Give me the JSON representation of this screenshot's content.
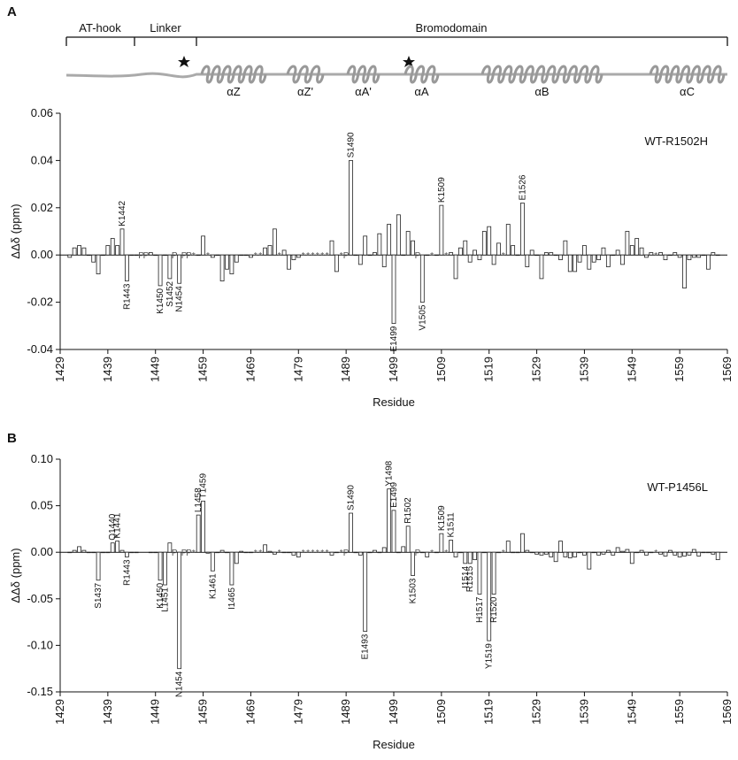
{
  "schematic": {
    "domains": [
      "AT-hook",
      "Linker",
      "Bromodomain"
    ],
    "helices": [
      "αZ",
      "αZ'",
      "αA'",
      "αA",
      "αB",
      "αC"
    ]
  },
  "chart_data": [
    {
      "type": "bar",
      "panel_label": "A",
      "annotation": "WT-R1502H",
      "xlabel": "Residue",
      "ylabel": "ΔΔδ (ppm)",
      "x": [
        1431,
        1432,
        1433,
        1434,
        1435,
        1436,
        1437,
        1438,
        1439,
        1440,
        1441,
        1442,
        1443,
        1444,
        1445,
        1446,
        1447,
        1448,
        1449,
        1450,
        1451,
        1452,
        1453,
        1454,
        1455,
        1456,
        1457,
        1458,
        1459,
        1460,
        1461,
        1462,
        1463,
        1464,
        1465,
        1466,
        1467,
        1468,
        1469,
        1470,
        1471,
        1472,
        1473,
        1474,
        1475,
        1476,
        1477,
        1478,
        1479,
        1480,
        1481,
        1482,
        1483,
        1484,
        1485,
        1486,
        1487,
        1488,
        1489,
        1490,
        1491,
        1492,
        1493,
        1494,
        1495,
        1496,
        1497,
        1498,
        1499,
        1500,
        1501,
        1502,
        1503,
        1504,
        1505,
        1506,
        1507,
        1508,
        1509,
        1510,
        1511,
        1512,
        1513,
        1514,
        1515,
        1516,
        1517,
        1518,
        1519,
        1520,
        1521,
        1522,
        1523,
        1524,
        1525,
        1526,
        1527,
        1528,
        1529,
        1530,
        1531,
        1532,
        1533,
        1534,
        1535,
        1536,
        1537,
        1538,
        1539,
        1540,
        1541,
        1542,
        1543,
        1544,
        1545,
        1546,
        1547,
        1548,
        1549,
        1550,
        1551,
        1552,
        1553,
        1554,
        1555,
        1556,
        1557,
        1558,
        1559,
        1560,
        1561,
        1562,
        1563,
        1564,
        1565,
        1566,
        1567
      ],
      "values": [
        -0.001,
        0.003,
        0.004,
        0.003,
        0,
        -0.003,
        -0.008,
        0,
        0.004,
        0.007,
        0.004,
        0.011,
        -0.011,
        0,
        0,
        null,
        null,
        0.001,
        0,
        -0.013,
        0,
        -0.01,
        null,
        -0.012,
        null,
        null,
        null,
        0,
        0.008,
        null,
        -0.001,
        0,
        -0.011,
        -0.006,
        -0.008,
        -0.003,
        0,
        0,
        -0.001,
        null,
        null,
        0.003,
        0.004,
        0.011,
        null,
        0.002,
        -0.006,
        -0.002,
        -0.001,
        null,
        null,
        null,
        null,
        null,
        null,
        0.006,
        -0.007,
        null,
        null,
        0.04,
        0,
        -0.004,
        0.008,
        0,
        0.001,
        0.009,
        -0.005,
        0.013,
        -0.029,
        0.017,
        0,
        0.01,
        0.006,
        null,
        -0.02,
        0,
        null,
        0,
        0.021,
        null,
        0.001,
        -0.01,
        0.003,
        0.006,
        -0.003,
        0.002,
        -0.002,
        0.01,
        0.012,
        -0.004,
        0.005,
        null,
        0.013,
        0.004,
        0,
        0.022,
        -0.005,
        0.002,
        0,
        -0.01,
        0.001,
        0.001,
        0,
        -0.002,
        0.006,
        -0.007,
        -0.007,
        -0.003,
        0.004,
        -0.006,
        -0.003,
        -0.002,
        0.003,
        -0.005,
        0,
        0.002,
        -0.004,
        0.01,
        0.004,
        0.007,
        0.003,
        -0.001,
        0.001,
        null,
        0.001,
        -0.002,
        0,
        0.001,
        -0.001,
        -0.014,
        -0.002,
        -0.001,
        -0.001,
        0,
        -0.006,
        0.001,
        0
      ],
      "labels": [
        {
          "x": 1442,
          "text": "K1442"
        },
        {
          "x": 1443,
          "text": "R1443"
        },
        {
          "x": 1450,
          "text": "K1450"
        },
        {
          "x": 1452,
          "text": "S1452"
        },
        {
          "x": 1454,
          "text": "N1454"
        },
        {
          "x": 1490,
          "text": "S1490"
        },
        {
          "x": 1499,
          "text": "E1499"
        },
        {
          "x": 1505,
          "text": "V1505"
        },
        {
          "x": 1509,
          "text": "K1509"
        },
        {
          "x": 1526,
          "text": "E1526"
        }
      ],
      "markers": [
        {
          "x": 1446,
          "text": "P"
        },
        {
          "x": 1447,
          "text": "P"
        },
        {
          "x": 1453,
          "text": "P"
        },
        {
          "x": 1455,
          "text": "P"
        },
        {
          "x": 1456,
          "text": "P"
        },
        {
          "x": 1457,
          "text": "*"
        },
        {
          "x": 1460,
          "text": "*"
        },
        {
          "x": 1470,
          "text": "*"
        },
        {
          "x": 1471,
          "text": "*"
        },
        {
          "x": 1475,
          "text": "*"
        },
        {
          "x": 1480,
          "text": "*"
        },
        {
          "x": 1481,
          "text": "*"
        },
        {
          "x": 1482,
          "text": "*"
        },
        {
          "x": 1483,
          "text": "*"
        },
        {
          "x": 1484,
          "text": "*"
        },
        {
          "x": 1485,
          "text": "*"
        },
        {
          "x": 1488,
          "text": "*"
        },
        {
          "x": 1489,
          "text": "P"
        },
        {
          "x": 1504,
          "text": "P"
        },
        {
          "x": 1507,
          "text": "*"
        },
        {
          "x": 1510,
          "text": "*"
        },
        {
          "x": 1522,
          "text": "*"
        },
        {
          "x": 1554,
          "text": "*"
        }
      ],
      "xlim": [
        1429,
        1569
      ],
      "xticks": [
        1429,
        1439,
        1449,
        1459,
        1469,
        1479,
        1489,
        1499,
        1509,
        1519,
        1529,
        1539,
        1549,
        1559,
        1569
      ],
      "ylim": [
        -0.04,
        0.06
      ],
      "yticks": [
        -0.04,
        -0.02,
        {
          "value": 0,
          "label": "0.00"
        },
        0.02,
        0.04,
        0.06
      ]
    },
    {
      "type": "bar",
      "panel_label": "B",
      "annotation": "WT-P1456L",
      "xlabel": "Residue",
      "ylabel": "ΔΔδ (ppm)",
      "x": [
        1431,
        1432,
        1433,
        1434,
        1435,
        1436,
        1437,
        1438,
        1439,
        1440,
        1441,
        1442,
        1443,
        1444,
        1445,
        1446,
        1447,
        1448,
        1449,
        1450,
        1451,
        1452,
        1453,
        1454,
        1455,
        1456,
        1457,
        1458,
        1459,
        1460,
        1461,
        1462,
        1463,
        1464,
        1465,
        1466,
        1467,
        1468,
        1469,
        1470,
        1471,
        1472,
        1473,
        1474,
        1475,
        1476,
        1477,
        1478,
        1479,
        1480,
        1481,
        1482,
        1483,
        1484,
        1485,
        1486,
        1487,
        1488,
        1489,
        1490,
        1491,
        1492,
        1493,
        1494,
        1495,
        1496,
        1497,
        1498,
        1499,
        1500,
        1501,
        1502,
        1503,
        1504,
        1505,
        1506,
        1507,
        1508,
        1509,
        1510,
        1511,
        1512,
        1513,
        1514,
        1515,
        1516,
        1517,
        1518,
        1519,
        1520,
        1521,
        1522,
        1523,
        1524,
        1525,
        1526,
        1527,
        1528,
        1529,
        1530,
        1531,
        1532,
        1533,
        1534,
        1535,
        1536,
        1537,
        1538,
        1539,
        1540,
        1541,
        1542,
        1543,
        1544,
        1545,
        1546,
        1547,
        1548,
        1549,
        1550,
        1551,
        1552,
        1553,
        1554,
        1555,
        1556,
        1557,
        1558,
        1559,
        1560,
        1561,
        1562,
        1563,
        1564,
        1565,
        1566,
        1567
      ],
      "values": [
        0,
        0.002,
        0.006,
        0.002,
        0,
        0,
        -0.03,
        0,
        0,
        0.01,
        0.012,
        0.002,
        -0.005,
        0,
        0,
        null,
        null,
        0,
        0,
        -0.03,
        -0.035,
        0.01,
        null,
        -0.125,
        null,
        null,
        null,
        0.04,
        0.055,
        -0.001,
        -0.02,
        0,
        0.002,
        0,
        -0.035,
        -0.012,
        0.001,
        0,
        0,
        null,
        null,
        0.008,
        0.001,
        -0.002,
        null,
        0,
        0,
        -0.003,
        -0.005,
        null,
        null,
        null,
        null,
        null,
        null,
        -0.003,
        0,
        null,
        null,
        0.042,
        0,
        -0.003,
        -0.085,
        0,
        0.002,
        0,
        0.005,
        0.068,
        0.045,
        0,
        0.006,
        0.028,
        -0.025,
        null,
        0,
        -0.005,
        null,
        0,
        0.02,
        null,
        0.013,
        -0.005,
        0,
        -0.012,
        -0.012,
        -0.008,
        -0.045,
        0,
        -0.095,
        -0.045,
        0,
        null,
        0.012,
        0,
        0,
        0.02,
        0.002,
        0,
        -0.002,
        -0.003,
        -0.002,
        -0.005,
        -0.01,
        0.012,
        -0.005,
        -0.006,
        -0.005,
        0,
        -0.003,
        -0.018,
        0,
        -0.003,
        -0.002,
        0.002,
        -0.003,
        0.005,
        0.001,
        0.003,
        -0.012,
        0,
        0.002,
        -0.003,
        0,
        null,
        -0.002,
        -0.004,
        0.002,
        -0.003,
        -0.005,
        -0.004,
        -0.003,
        0.003,
        -0.004,
        0,
        0,
        -0.002,
        -0.008
      ],
      "labels": [
        {
          "x": 1437,
          "text": "S1437"
        },
        {
          "x": 1440,
          "text": "Q1440"
        },
        {
          "x": 1441,
          "text": "K1441"
        },
        {
          "x": 1443,
          "text": "R1443"
        },
        {
          "x": 1450,
          "text": "K1450"
        },
        {
          "x": 1451,
          "text": "L1451"
        },
        {
          "x": 1454,
          "text": "N1454"
        },
        {
          "x": 1458,
          "text": "L1458"
        },
        {
          "x": 1459,
          "text": "T1459"
        },
        {
          "x": 1461,
          "text": "K1461"
        },
        {
          "x": 1465,
          "text": "I1465"
        },
        {
          "x": 1490,
          "text": "S1490"
        },
        {
          "x": 1493,
          "text": "E1493"
        },
        {
          "x": 1498,
          "text": "Y1498"
        },
        {
          "x": 1499,
          "text": "E1499"
        },
        {
          "x": 1502,
          "text": "R1502"
        },
        {
          "x": 1503,
          "text": "K1503"
        },
        {
          "x": 1509,
          "text": "K1509"
        },
        {
          "x": 1511,
          "text": "K1511"
        },
        {
          "x": 1514,
          "text": "I1514"
        },
        {
          "x": 1515,
          "text": "R1515"
        },
        {
          "x": 1517,
          "text": "H1517"
        },
        {
          "x": 1519,
          "text": "Y1519"
        },
        {
          "x": 1520,
          "text": "R1520"
        }
      ],
      "markers": [
        {
          "x": 1453,
          "text": "P"
        },
        {
          "x": 1455,
          "text": "P"
        },
        {
          "x": 1456,
          "text": "P"
        },
        {
          "x": 1457,
          "text": "*"
        },
        {
          "x": 1470,
          "text": "*"
        },
        {
          "x": 1471,
          "text": "*"
        },
        {
          "x": 1475,
          "text": "*"
        },
        {
          "x": 1480,
          "text": "*"
        },
        {
          "x": 1481,
          "text": "*"
        },
        {
          "x": 1482,
          "text": "*"
        },
        {
          "x": 1483,
          "text": "*"
        },
        {
          "x": 1484,
          "text": "*"
        },
        {
          "x": 1485,
          "text": "*"
        },
        {
          "x": 1488,
          "text": "*"
        },
        {
          "x": 1489,
          "text": "P"
        },
        {
          "x": 1504,
          "text": "P"
        },
        {
          "x": 1507,
          "text": "*"
        },
        {
          "x": 1510,
          "text": "*"
        },
        {
          "x": 1522,
          "text": "*"
        },
        {
          "x": 1554,
          "text": "*"
        }
      ],
      "xlim": [
        1429,
        1569
      ],
      "xticks": [
        1429,
        1439,
        1449,
        1459,
        1469,
        1479,
        1489,
        1499,
        1509,
        1519,
        1529,
        1539,
        1549,
        1559,
        1569
      ],
      "ylim": [
        -0.15,
        0.1
      ],
      "yticks": [
        -0.15,
        {
          "value": -0.1,
          "label": "-0.10"
        },
        -0.05,
        {
          "value": 0,
          "label": "0.00"
        },
        0.05,
        {
          "value": 0.1,
          "label": "0.10"
        }
      ]
    }
  ]
}
